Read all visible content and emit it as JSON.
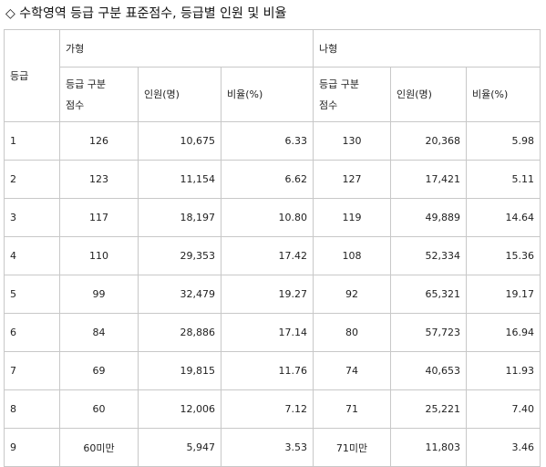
{
  "title": "◇ 수학영역 등급 구분 표준점수, 등급별 인원 및 비율",
  "table": {
    "grade_header": "등급",
    "groups": [
      {
        "name": "가형",
        "columns": {
          "score_line1": "등급 구분",
          "score_line2": "점수",
          "people": "인원(명)",
          "ratio": "비율(%)"
        }
      },
      {
        "name": "나형",
        "columns": {
          "score_line1": "등급 구분",
          "score_line2": "점수",
          "people": "인원(명)",
          "ratio": "비율(%)"
        }
      }
    ],
    "rows": [
      {
        "grade": "1",
        "ga_score": "126",
        "ga_people": "10,675",
        "ga_ratio": "6.33",
        "na_score": "130",
        "na_people": "20,368",
        "na_ratio": "5.98"
      },
      {
        "grade": "2",
        "ga_score": "123",
        "ga_people": "11,154",
        "ga_ratio": "6.62",
        "na_score": "127",
        "na_people": "17,421",
        "na_ratio": "5.11"
      },
      {
        "grade": "3",
        "ga_score": "117",
        "ga_people": "18,197",
        "ga_ratio": "10.80",
        "na_score": "119",
        "na_people": "49,889",
        "na_ratio": "14.64"
      },
      {
        "grade": "4",
        "ga_score": "110",
        "ga_people": "29,353",
        "ga_ratio": "17.42",
        "na_score": "108",
        "na_people": "52,334",
        "na_ratio": "15.36"
      },
      {
        "grade": "5",
        "ga_score": "99",
        "ga_people": "32,479",
        "ga_ratio": "19.27",
        "na_score": "92",
        "na_people": "65,321",
        "na_ratio": "19.17"
      },
      {
        "grade": "6",
        "ga_score": "84",
        "ga_people": "28,886",
        "ga_ratio": "17.14",
        "na_score": "80",
        "na_people": "57,723",
        "na_ratio": "16.94"
      },
      {
        "grade": "7",
        "ga_score": "69",
        "ga_people": "19,815",
        "ga_ratio": "11.76",
        "na_score": "74",
        "na_people": "40,653",
        "na_ratio": "11.93"
      },
      {
        "grade": "8",
        "ga_score": "60",
        "ga_people": "12,006",
        "ga_ratio": "7.12",
        "na_score": "71",
        "na_people": "25,221",
        "na_ratio": "7.40"
      },
      {
        "grade": "9",
        "ga_score": "60미만",
        "ga_people": "5,947",
        "ga_ratio": "3.53",
        "na_score": "71미만",
        "na_people": "11,803",
        "na_ratio": "3.46"
      }
    ]
  }
}
